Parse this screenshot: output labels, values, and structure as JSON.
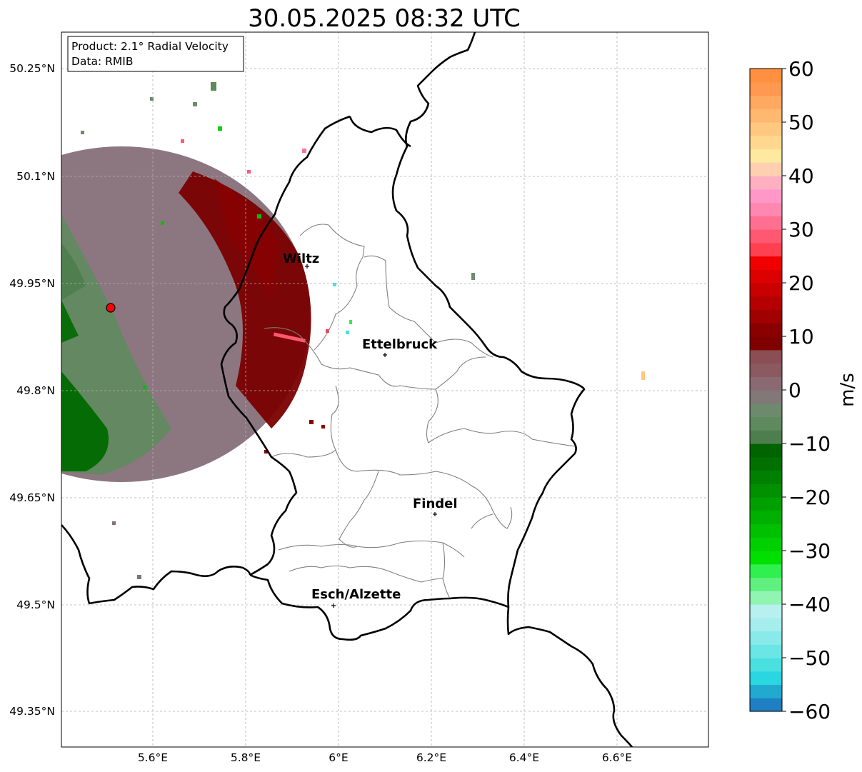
{
  "title": "30.05.2025 08:32 UTC",
  "info_box": {
    "product": "Product: 2.1° Radial Velocity",
    "data": "Data: RMIB"
  },
  "lat_labels": [
    "50.25°N",
    "50.1°N",
    "49.95°N",
    "49.8°N",
    "49.65°N",
    "49.5°N",
    "49.35°N"
  ],
  "lon_labels": [
    "5.6°E",
    "5.8°E",
    "6°E",
    "6.2°E",
    "6.4°E",
    "6.6°E"
  ],
  "cities": [
    {
      "name": "Wiltz"
    },
    {
      "name": "Ettelbruck"
    },
    {
      "name": "Findel"
    },
    {
      "name": "Esch/Alzette"
    }
  ],
  "colorbar": {
    "label": "m/s",
    "ticks": [
      "60",
      "50",
      "40",
      "30",
      "20",
      "10",
      "0",
      "−10",
      "−20",
      "−30",
      "−40",
      "−50",
      "−60"
    ],
    "min": -60,
    "max": 60,
    "colors": [
      "#1f7fc2",
      "#22a9d0",
      "#2ad6e0",
      "#4ae0e0",
      "#6ae6e6",
      "#8aeaea",
      "#a6eeee",
      "#b8f0f0",
      "#8ff5b0",
      "#60f080",
      "#30f050",
      "#00e000",
      "#00d000",
      "#00c000",
      "#00b000",
      "#00a000",
      "#009000",
      "#008000",
      "#007000",
      "#006400",
      "#4e7e4e",
      "#5e8a5e",
      "#6e8a6e",
      "#827878",
      "#8a6a72",
      "#8a5a60",
      "#8a4e54",
      "#800000",
      "#8a0000",
      "#a00000",
      "#b40000",
      "#c80000",
      "#dc0000",
      "#f00000",
      "#ff4050",
      "#ff5870",
      "#ff7090",
      "#ff88b0",
      "#ff98c8",
      "#ffb0c0",
      "#ffd0b0",
      "#ffe8a0",
      "#ffd890",
      "#ffc880",
      "#ffb870",
      "#ffa860",
      "#ff9850",
      "#ff9040"
    ]
  },
  "radar": {
    "lon": 5.51,
    "lat": 49.915
  }
}
